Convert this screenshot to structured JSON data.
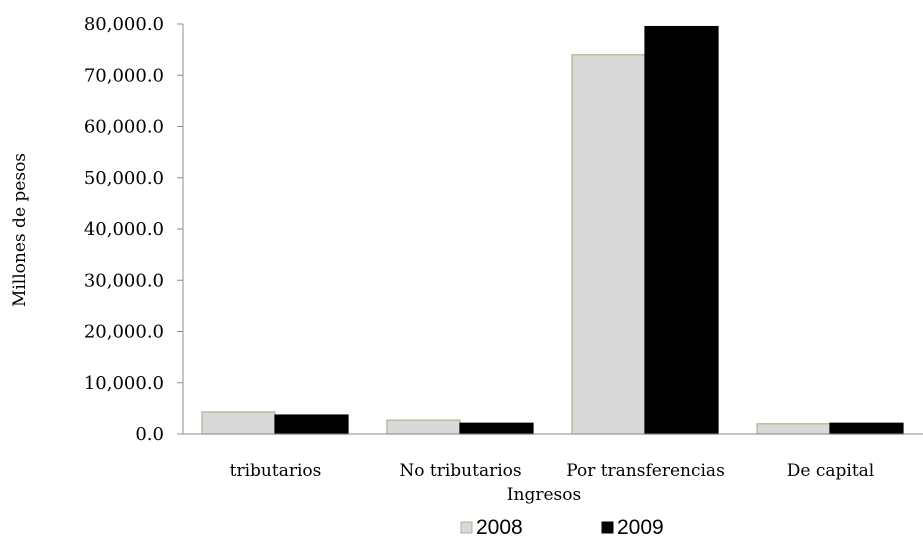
{
  "chart_data": {
    "type": "bar",
    "title": "",
    "xlabel": "Ingresos",
    "ylabel": "Millones de pesos",
    "categories": [
      "tributarios",
      "No tributarios",
      "Por transferencias",
      "De capital"
    ],
    "series": [
      {
        "name": "2008",
        "values": [
          4300,
          2700,
          74000,
          2000
        ],
        "color": "#d9d9d9",
        "stroke": "#b8ad8a"
      },
      {
        "name": "2009",
        "values": [
          3700,
          2100,
          79500,
          2100
        ],
        "color": "#000000",
        "stroke": "#000000"
      }
    ],
    "ylim": [
      0,
      80000
    ],
    "yticks": [
      0,
      10000,
      20000,
      30000,
      40000,
      50000,
      60000,
      70000,
      80000
    ],
    "ytick_labels": [
      "0.0",
      "10,000.0",
      "20,000.0",
      "30,000.0",
      "40,000.0",
      "50,000.0",
      "60,000.0",
      "70,000.0",
      "80,000.0"
    ],
    "grid": false,
    "legend_position": "bottom"
  }
}
